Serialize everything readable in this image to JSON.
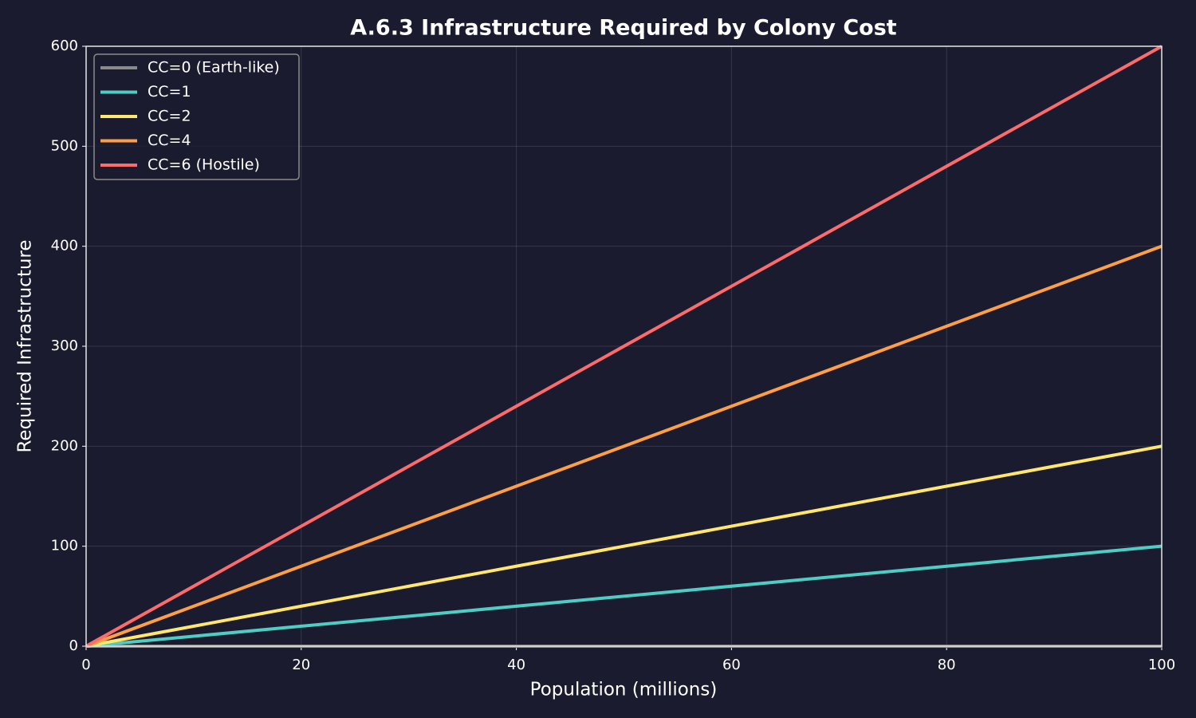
{
  "chart_data": {
    "type": "line",
    "title": "A.6.3 Infrastructure Required by Colony Cost",
    "x_label": "Population (millions)",
    "y_label": "Required Infrastructure",
    "x": [
      0,
      100
    ],
    "series": [
      {
        "name": "CC=0 (Earth-like)",
        "color": "#8a8a8a",
        "values": [
          0,
          0
        ]
      },
      {
        "name": "CC=1",
        "color": "#4ecdc4",
        "values": [
          0,
          100
        ]
      },
      {
        "name": "CC=2",
        "color": "#ffe66d",
        "values": [
          0,
          200
        ]
      },
      {
        "name": "CC=4",
        "color": "#ff9f43",
        "values": [
          0,
          400
        ]
      },
      {
        "name": "CC=6 (Hostile)",
        "color": "#ff6b6b",
        "values": [
          0,
          600
        ]
      }
    ],
    "xlim": [
      0,
      100
    ],
    "xticks": [
      0,
      20,
      40,
      60,
      80,
      100
    ],
    "ylim": [
      0,
      600
    ],
    "yticks": [
      0,
      100,
      200,
      300,
      400,
      500,
      600
    ],
    "grid": true,
    "legend": "upper-left"
  }
}
